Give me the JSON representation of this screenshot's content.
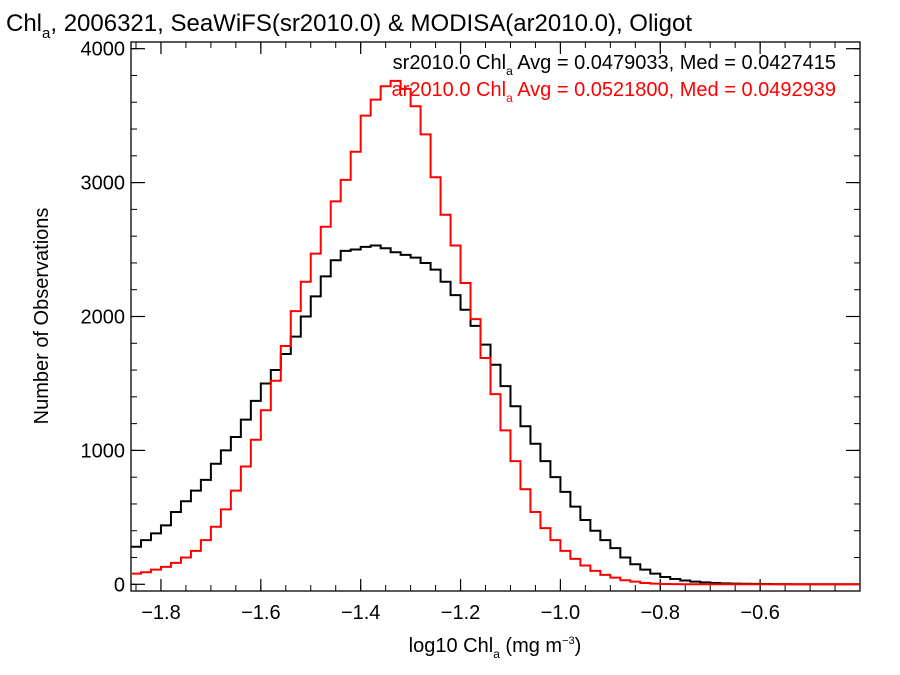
{
  "chart_data": {
    "type": "line",
    "step": true,
    "title": {
      "prefix": "Chl",
      "sub": "a",
      "rest": ", 2006321, SeaWiFS(sr2010.0) & MODISA(ar2010.0), Oligot"
    },
    "xlabel": {
      "prefix": "log10 Chl",
      "sub": "a",
      "mid": " (mg m",
      "sup": "−3",
      "suffix": ")"
    },
    "ylabel": "Number of Observations",
    "xlim": [
      -1.86,
      -0.4
    ],
    "ylim": [
      -50,
      4050
    ],
    "x_ticks": [
      -1.8,
      -1.6,
      -1.4,
      -1.2,
      -1.0,
      -0.8,
      -0.6
    ],
    "x_tick_labels": [
      "−1.8",
      "−1.6",
      "−1.4",
      "−1.2",
      "−1.0",
      "−0.8",
      "−0.6"
    ],
    "x_minor_step": 0.05,
    "y_ticks": [
      0,
      1000,
      2000,
      3000,
      4000
    ],
    "y_tick_labels": [
      "0",
      "1000",
      "2000",
      "3000",
      "4000"
    ],
    "y_minor_step": 200,
    "grid": false,
    "legend_position": "top-right",
    "series": [
      {
        "name": "sr2010.0",
        "color": "#000000",
        "legend": {
          "prefix": "sr2010.0 Chl",
          "sub": "a",
          "rest": " Avg = 0.0479033, Med = 0.0427415"
        },
        "x": [
          -1.86,
          -1.84,
          -1.82,
          -1.8,
          -1.78,
          -1.76,
          -1.74,
          -1.72,
          -1.7,
          -1.68,
          -1.66,
          -1.64,
          -1.62,
          -1.6,
          -1.58,
          -1.56,
          -1.54,
          -1.52,
          -1.5,
          -1.48,
          -1.46,
          -1.44,
          -1.42,
          -1.4,
          -1.38,
          -1.36,
          -1.34,
          -1.32,
          -1.3,
          -1.28,
          -1.26,
          -1.24,
          -1.22,
          -1.2,
          -1.18,
          -1.16,
          -1.14,
          -1.12,
          -1.1,
          -1.08,
          -1.06,
          -1.04,
          -1.02,
          -1.0,
          -0.98,
          -0.96,
          -0.94,
          -0.92,
          -0.9,
          -0.88,
          -0.86,
          -0.84,
          -0.82,
          -0.8,
          -0.78,
          -0.76,
          -0.74,
          -0.72,
          -0.7,
          -0.68,
          -0.66,
          -0.64,
          -0.62,
          -0.6,
          -0.58,
          -0.56,
          -0.54,
          -0.52,
          -0.5,
          -0.48,
          -0.46,
          -0.44,
          -0.42
        ],
        "values": [
          280,
          330,
          380,
          440,
          540,
          620,
          700,
          780,
          900,
          1000,
          1100,
          1230,
          1370,
          1500,
          1600,
          1720,
          1850,
          2000,
          2150,
          2300,
          2420,
          2490,
          2500,
          2520,
          2530,
          2510,
          2480,
          2460,
          2440,
          2400,
          2350,
          2260,
          2160,
          2050,
          1930,
          1790,
          1640,
          1480,
          1330,
          1180,
          1050,
          920,
          800,
          690,
          580,
          480,
          400,
          330,
          270,
          200,
          150,
          110,
          80,
          55,
          40,
          28,
          20,
          14,
          10,
          7,
          5,
          4,
          3,
          2,
          1,
          1,
          0,
          0,
          0,
          0,
          0,
          0,
          0
        ]
      },
      {
        "name": "ar2010.0",
        "color": "#ff0000",
        "legend": {
          "prefix": "ar2010.0 Chl",
          "sub": "a",
          "rest": " Avg = 0.0521800, Med = 0.0492939"
        },
        "x": [
          -1.86,
          -1.84,
          -1.82,
          -1.8,
          -1.78,
          -1.76,
          -1.74,
          -1.72,
          -1.7,
          -1.68,
          -1.66,
          -1.64,
          -1.62,
          -1.6,
          -1.58,
          -1.56,
          -1.54,
          -1.52,
          -1.5,
          -1.48,
          -1.46,
          -1.44,
          -1.42,
          -1.4,
          -1.38,
          -1.36,
          -1.34,
          -1.32,
          -1.3,
          -1.28,
          -1.26,
          -1.24,
          -1.22,
          -1.2,
          -1.18,
          -1.16,
          -1.14,
          -1.12,
          -1.1,
          -1.08,
          -1.06,
          -1.04,
          -1.02,
          -1.0,
          -0.98,
          -0.96,
          -0.94,
          -0.92,
          -0.9,
          -0.88,
          -0.86,
          -0.84,
          -0.82,
          -0.8,
          -0.78,
          -0.76,
          -0.74,
          -0.72,
          -0.7,
          -0.68,
          -0.66,
          -0.64,
          -0.62,
          -0.6,
          -0.58,
          -0.56,
          -0.54,
          -0.52,
          -0.5,
          -0.48,
          -0.46,
          -0.44,
          -0.42
        ],
        "values": [
          80,
          90,
          110,
          130,
          160,
          200,
          250,
          330,
          430,
          560,
          700,
          880,
          1080,
          1300,
          1520,
          1780,
          2040,
          2260,
          2470,
          2670,
          2860,
          3020,
          3230,
          3500,
          3620,
          3720,
          3760,
          3700,
          3570,
          3360,
          3040,
          2760,
          2530,
          2250,
          1980,
          1690,
          1420,
          1150,
          920,
          710,
          540,
          420,
          330,
          250,
          190,
          140,
          100,
          70,
          50,
          30,
          20,
          10,
          5,
          2,
          1,
          0,
          0,
          0,
          0,
          0,
          0,
          0,
          0,
          0,
          0,
          0,
          0,
          0,
          0,
          0,
          0,
          0,
          0
        ]
      }
    ]
  }
}
